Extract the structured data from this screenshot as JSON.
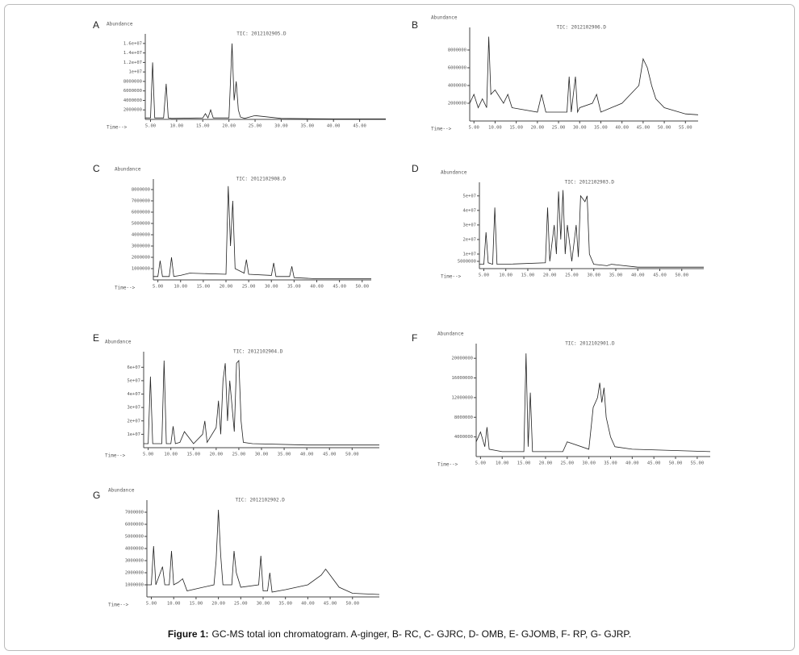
{
  "chart_data": [
    {
      "type": "line",
      "panel_label": "A",
      "ylabel": "Abundance",
      "xlabel": "Time-->",
      "title": "TIC: 2012102905.D",
      "x": [
        4,
        5,
        5.4,
        5.8,
        7.5,
        8,
        8.4,
        9,
        15,
        15.5,
        16,
        16.5,
        17,
        20,
        20.6,
        21,
        21.4,
        21.8,
        22.2,
        23,
        25,
        30,
        40,
        50
      ],
      "series": [
        {
          "color": "#222",
          "values": [
            300000.0,
            300000.0,
            12000000.0,
            300000.0,
            300000.0,
            7500000.0,
            300000.0,
            200000.0,
            300000.0,
            1200000.0,
            300000.0,
            2000000.0,
            300000.0,
            300000.0,
            16000000.0,
            4000000.0,
            8000000.0,
            2000000.0,
            500000.0,
            200000.0,
            800000.0,
            200000.0,
            100000.0,
            100000.0
          ]
        }
      ],
      "xlim": [
        4,
        50
      ],
      "ylim": [
        0,
        17000000
      ],
      "xticks": [
        {
          "value": 5,
          "label": "5.00"
        },
        {
          "value": 10,
          "label": "10.00"
        },
        {
          "value": 15,
          "label": "15.00"
        },
        {
          "value": 20,
          "label": "20.00"
        },
        {
          "value": 25,
          "label": "25.00"
        },
        {
          "value": 30,
          "label": "30.00"
        },
        {
          "value": 35,
          "label": "35.00"
        },
        {
          "value": 40,
          "label": "40.00"
        },
        {
          "value": 45,
          "label": "45.00"
        }
      ],
      "yticks": [
        2000000,
        4000000,
        6000000,
        8000000,
        {
          "value": 10000000,
          "label": "1e+07"
        },
        {
          "value": 12000000,
          "label": "1.2e+07"
        },
        {
          "value": 14000000,
          "label": "1.4e+07"
        },
        {
          "value": 16000000,
          "label": "1.6e+07"
        }
      ]
    },
    {
      "type": "line",
      "panel_label": "B",
      "ylabel": "Abundance",
      "xlabel": "Time-->",
      "title": "TIC: 2012102906.D",
      "x": [
        4,
        5,
        6,
        7,
        8,
        8.5,
        9,
        10,
        12,
        13,
        14,
        20,
        21,
        22,
        27,
        27.5,
        28,
        29,
        29.5,
        30,
        33,
        34,
        35,
        40,
        44,
        45,
        46,
        47,
        48,
        50,
        55,
        58
      ],
      "series": [
        {
          "color": "#222",
          "values": [
            2000000.0,
            3000000.0,
            1500000.0,
            2500000.0,
            1500000.0,
            9500000.0,
            3000000.0,
            3500000.0,
            2000000.0,
            3000000.0,
            1500000.0,
            1000000.0,
            3000000.0,
            1000000.0,
            1000000.0,
            5000000.0,
            1000000.0,
            5000000.0,
            1000000.0,
            1500000.0,
            2000000.0,
            3000000.0,
            1000000.0,
            2000000.0,
            4000000.0,
            7000000.0,
            6000000.0,
            4000000.0,
            2500000.0,
            1500000.0,
            800000.0,
            700000.0
          ]
        }
      ],
      "xlim": [
        4,
        58
      ],
      "ylim": [
        0,
        10000000
      ],
      "xticks": [
        {
          "value": 5,
          "label": "5.00"
        },
        {
          "value": 10,
          "label": "10.00"
        },
        {
          "value": 15,
          "label": "15.00"
        },
        {
          "value": 20,
          "label": "20.00"
        },
        {
          "value": 25,
          "label": "25.00"
        },
        {
          "value": 30,
          "label": "30.00"
        },
        {
          "value": 35,
          "label": "35.00"
        },
        {
          "value": 40,
          "label": "40.00"
        },
        {
          "value": 45,
          "label": "45.00"
        },
        {
          "value": 50,
          "label": "50.00"
        },
        {
          "value": 55,
          "label": "55.00"
        }
      ],
      "yticks": [
        2000000,
        4000000,
        6000000,
        8000000
      ]
    },
    {
      "type": "line",
      "panel_label": "C",
      "ylabel": "Abundance",
      "xlabel": "Time-->",
      "title": "TIC: 2012102908.D",
      "x": [
        4,
        5,
        5.5,
        6,
        7.5,
        8,
        8.5,
        10,
        12,
        20,
        20.5,
        21,
        21.5,
        22,
        24,
        24.5,
        25,
        30,
        30.5,
        31,
        34,
        34.5,
        35,
        40,
        52
      ],
      "series": [
        {
          "color": "#222",
          "values": [
            300000.0,
            300000.0,
            1700000.0,
            300000.0,
            300000.0,
            2000000.0,
            300000.0,
            400000.0,
            600000.0,
            500000.0,
            8300000.0,
            3000000.0,
            7000000.0,
            1000000.0,
            600000.0,
            1800000.0,
            500000.0,
            400000.0,
            1500000.0,
            300000.0,
            300000.0,
            1200000.0,
            200000.0,
            100000.0,
            100000.0
          ]
        }
      ],
      "xlim": [
        4,
        52
      ],
      "ylim": [
        0,
        8500000
      ],
      "xticks": [
        {
          "value": 5,
          "label": "5.00"
        },
        {
          "value": 10,
          "label": "10.00"
        },
        {
          "value": 15,
          "label": "15.00"
        },
        {
          "value": 20,
          "label": "20.00"
        },
        {
          "value": 25,
          "label": "25.00"
        },
        {
          "value": 30,
          "label": "30.00"
        },
        {
          "value": 35,
          "label": "35.00"
        },
        {
          "value": 40,
          "label": "40.00"
        },
        {
          "value": 45,
          "label": "45.00"
        },
        {
          "value": 50,
          "label": "50.00"
        }
      ],
      "yticks": [
        1000000,
        2000000,
        3000000,
        4000000,
        5000000,
        6000000,
        7000000,
        8000000
      ]
    },
    {
      "type": "line",
      "panel_label": "D",
      "ylabel": "Abundance",
      "xlabel": "Time-->",
      "title": "TIC: 2012102903.D",
      "x": [
        4,
        5,
        5.5,
        6,
        7,
        7.5,
        8,
        10,
        19,
        19.5,
        20,
        21,
        21.5,
        22,
        22.5,
        23,
        23.5,
        24,
        25,
        26,
        26.5,
        27,
        28,
        28.5,
        29,
        30,
        33,
        34,
        40,
        55
      ],
      "series": [
        {
          "color": "#222",
          "values": [
            3000000.0,
            3000000.0,
            25000000.0,
            4000000.0,
            3000000.0,
            42000000.0,
            3000000.0,
            3000000.0,
            4000000.0,
            42000000.0,
            5000000.0,
            30000000.0,
            10000000.0,
            53000000.0,
            20000000.0,
            54000000.0,
            10000000.0,
            30000000.0,
            5000000.0,
            30000000.0,
            8000000.0,
            50000000.0,
            46000000.0,
            50000000.0,
            10000000.0,
            3000000.0,
            2000000.0,
            3000000.0,
            1000000.0,
            1000000.0
          ]
        }
      ],
      "xlim": [
        4,
        55
      ],
      "ylim": [
        0,
        56000000
      ],
      "xticks": [
        {
          "value": 5,
          "label": "5.00"
        },
        {
          "value": 10,
          "label": "10.00"
        },
        {
          "value": 15,
          "label": "15.00"
        },
        {
          "value": 20,
          "label": "20.00"
        },
        {
          "value": 25,
          "label": "25.00"
        },
        {
          "value": 30,
          "label": "30.00"
        },
        {
          "value": 35,
          "label": "35.00"
        },
        {
          "value": 40,
          "label": "40.00"
        },
        {
          "value": 45,
          "label": "45.00"
        },
        {
          "value": 50,
          "label": "50.00"
        }
      ],
      "yticks": [
        5000000,
        {
          "value": 10000000,
          "label": "1e+07"
        },
        {
          "value": 20000000,
          "label": "2e+07"
        },
        {
          "value": 30000000,
          "label": "3e+07"
        },
        {
          "value": 40000000,
          "label": "4e+07"
        },
        {
          "value": 50000000,
          "label": "5e+07"
        }
      ]
    },
    {
      "type": "line",
      "panel_label": "E",
      "ylabel": "Abundance",
      "xlabel": "Time-->",
      "title": "TIC: 2012102904.D",
      "x": [
        4,
        5,
        5.5,
        6,
        8,
        8.5,
        9,
        10,
        10.5,
        11,
        12,
        13,
        15,
        17,
        17.5,
        18,
        20,
        20.5,
        21,
        21.5,
        22,
        22.5,
        23,
        24,
        24.5,
        25,
        25.5,
        26,
        28,
        40,
        56
      ],
      "series": [
        {
          "color": "#222",
          "values": [
            3000000.0,
            3000000.0,
            53000000.0,
            3000000.0,
            3000000.0,
            65000000.0,
            3000000.0,
            3000000.0,
            16000000.0,
            3000000.0,
            4000000.0,
            12000000.0,
            3000000.0,
            10000000.0,
            20000000.0,
            4000000.0,
            15000000.0,
            35000000.0,
            10000000.0,
            50000000.0,
            63000000.0,
            20000000.0,
            50000000.0,
            12000000.0,
            63000000.0,
            65000000.0,
            20000000.0,
            4000000.0,
            3000000.0,
            2000000.0,
            2000000.0
          ]
        }
      ],
      "xlim": [
        4,
        56
      ],
      "ylim": [
        0,
        68000000
      ],
      "xticks": [
        {
          "value": 5,
          "label": "5.00"
        },
        {
          "value": 10,
          "label": "10.00"
        },
        {
          "value": 15,
          "label": "15.00"
        },
        {
          "value": 20,
          "label": "20.00"
        },
        {
          "value": 25,
          "label": "25.00"
        },
        {
          "value": 30,
          "label": "30.00"
        },
        {
          "value": 35,
          "label": "35.00"
        },
        {
          "value": 40,
          "label": "40.00"
        },
        {
          "value": 45,
          "label": "45.00"
        },
        {
          "value": 50,
          "label": "50.00"
        }
      ],
      "yticks": [
        {
          "value": 10000000,
          "label": "1e+07"
        },
        {
          "value": 20000000,
          "label": "2e+07"
        },
        {
          "value": 30000000,
          "label": "3e+07"
        },
        {
          "value": 40000000,
          "label": "4e+07"
        },
        {
          "value": 50000000,
          "label": "5e+07"
        },
        {
          "value": 60000000,
          "label": "6e+07"
        }
      ]
    },
    {
      "type": "line",
      "panel_label": "F",
      "ylabel": "Abundance",
      "xlabel": "Time-->",
      "title": "TIC: 2012102901.D",
      "x": [
        4,
        5,
        6,
        6.5,
        7,
        10,
        15,
        15.5,
        16,
        16.5,
        17,
        18,
        24,
        25,
        30,
        31,
        32,
        32.5,
        33,
        33.5,
        34,
        35,
        36,
        40,
        58
      ],
      "series": [
        {
          "color": "#222",
          "values": [
            3000000.0,
            5000000.0,
            2000000.0,
            6000000.0,
            1500000.0,
            1000000.0,
            1000000.0,
            21000000.0,
            2000000.0,
            13000000.0,
            1000000.0,
            1000000.0,
            1000000.0,
            3000000.0,
            1500000.0,
            10000000.0,
            12000000.0,
            15000000.0,
            11000000.0,
            14000000.0,
            8000000.0,
            4000000.0,
            2000000.0,
            1500000.0,
            1000000.0
          ]
        }
      ],
      "xlim": [
        4,
        58
      ],
      "ylim": [
        0,
        22000000
      ],
      "xticks": [
        {
          "value": 5,
          "label": "5.00"
        },
        {
          "value": 10,
          "label": "10.00"
        },
        {
          "value": 15,
          "label": "15.00"
        },
        {
          "value": 20,
          "label": "20.00"
        },
        {
          "value": 25,
          "label": "25.00"
        },
        {
          "value": 30,
          "label": "30.00"
        },
        {
          "value": 35,
          "label": "35.00"
        },
        {
          "value": 40,
          "label": "40.00"
        },
        {
          "value": 45,
          "label": "45.00"
        },
        {
          "value": 50,
          "label": "50.00"
        },
        {
          "value": 55,
          "label": "55.00"
        }
      ],
      "yticks": [
        4000000,
        8000000,
        12000000,
        16000000,
        20000000
      ]
    },
    {
      "type": "line",
      "panel_label": "G",
      "ylabel": "Abundance",
      "xlabel": "Time-->",
      "title": "TIC: 2012102902.D",
      "x": [
        4,
        5,
        5.5,
        6,
        7.5,
        8,
        9,
        9.5,
        10,
        11,
        12,
        13,
        19,
        19.5,
        20,
        20.5,
        21,
        23,
        23.5,
        24,
        25,
        29,
        29.5,
        30,
        31,
        31.5,
        32,
        35,
        40,
        43,
        44,
        45,
        47,
        50,
        56
      ],
      "series": [
        {
          "color": "#222",
          "values": [
            1000000.0,
            1000000.0,
            4200000.0,
            1000000.0,
            2500000.0,
            1000000.0,
            1000000.0,
            3800000.0,
            1000000.0,
            1200000.0,
            1500000.0,
            500000.0,
            1000000.0,
            3000000.0,
            7200000.0,
            3500000.0,
            1000000.0,
            1000000.0,
            3800000.0,
            2000000.0,
            800000.0,
            1000000.0,
            3400000.0,
            500000.0,
            500000.0,
            2000000.0,
            400000.0,
            600000.0,
            1000000.0,
            1800000.0,
            2300000.0,
            1800000.0,
            800000.0,
            300000.0,
            200000.0
          ]
        }
      ],
      "xlim": [
        4,
        56
      ],
      "ylim": [
        0,
        7600000
      ],
      "xticks": [
        {
          "value": 5,
          "label": "5.00"
        },
        {
          "value": 10,
          "label": "10.00"
        },
        {
          "value": 15,
          "label": "15.00"
        },
        {
          "value": 20,
          "label": "20.00"
        },
        {
          "value": 25,
          "label": "25.00"
        },
        {
          "value": 30,
          "label": "30.00"
        },
        {
          "value": 35,
          "label": "35.00"
        },
        {
          "value": 40,
          "label": "40.00"
        },
        {
          "value": 45,
          "label": "45.00"
        },
        {
          "value": 50,
          "label": "50.00"
        }
      ],
      "yticks": [
        1000000,
        2000000,
        3000000,
        4000000,
        5000000,
        6000000,
        7000000
      ]
    }
  ],
  "caption": {
    "label": "Figure 1:",
    "text": "GC-MS total ion chromatogram. A-ginger, B- RC, C- GJRC, D- OMB, E- GJOMB, F- RP, G- GJRP."
  }
}
